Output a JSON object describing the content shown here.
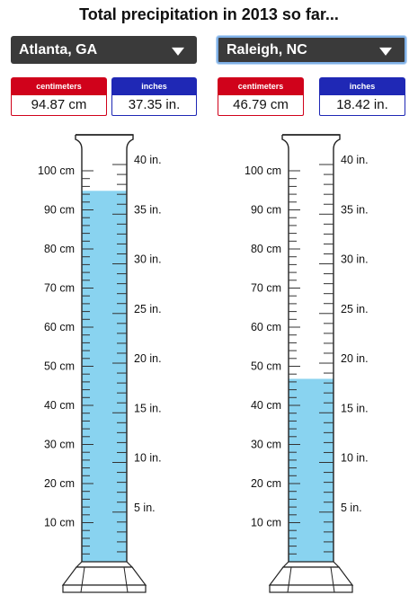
{
  "title": "Total precipitation in 2013 so far...",
  "colors": {
    "liquid": "#89d3f0",
    "cm_badge": "#d0021b",
    "in_badge": "#1f28b5",
    "select_bg": "#3a3a3a"
  },
  "cities": [
    {
      "select_value": "Atlanta, GA",
      "cm_label": "centimeters",
      "cm_value": "94.87 cm",
      "in_label": "inches",
      "in_value": "37.35 in.",
      "fill_cm": 94.87
    },
    {
      "select_value": "Raleigh, NC",
      "cm_label": "centimeters",
      "cm_value": "46.79 cm",
      "in_label": "inches",
      "in_value": "18.42 in.",
      "fill_cm": 46.79
    }
  ],
  "scale": {
    "cm_labels": [
      "10 cm",
      "20 cm",
      "30 cm",
      "40 cm",
      "50 cm",
      "60 cm",
      "70 cm",
      "80 cm",
      "90 cm",
      "100 cm"
    ],
    "in_labels": [
      "5 in.",
      "10 in.",
      "15 in.",
      "20 in.",
      "25 in.",
      "30 in.",
      "35 in.",
      "40 in."
    ]
  }
}
